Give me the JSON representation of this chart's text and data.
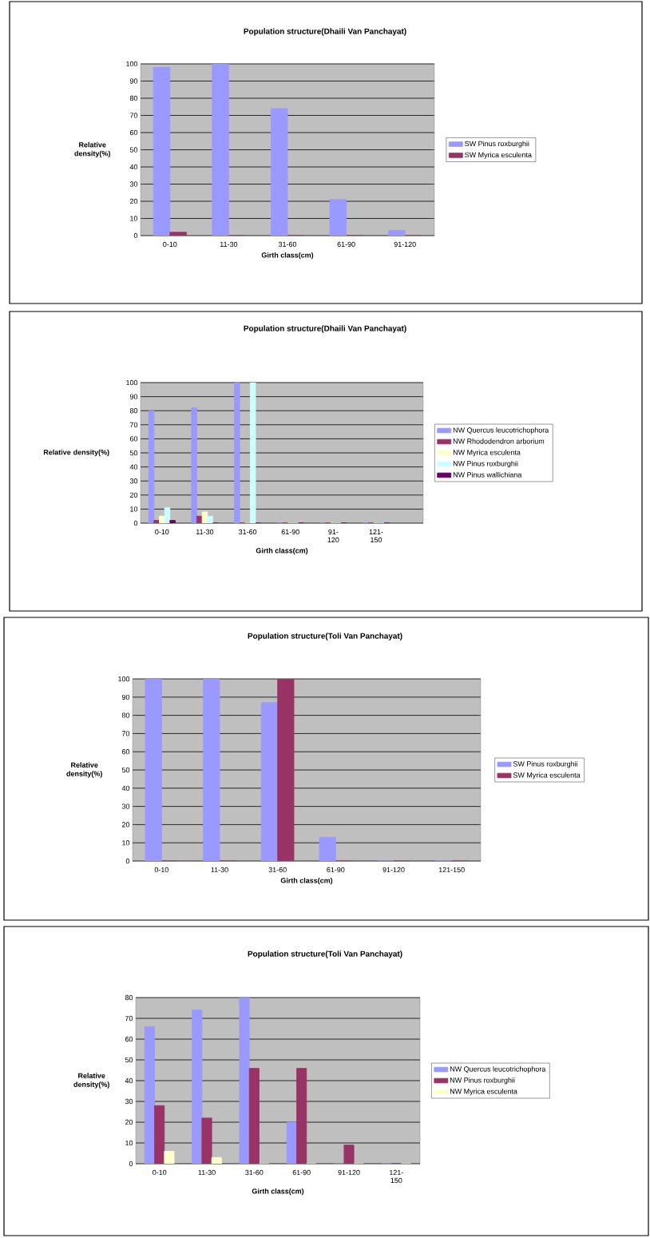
{
  "chart_data": [
    {
      "type": "bar",
      "title": "Population structure(Dhaili Van Panchayat)",
      "xlabel": "Girth class(cm)",
      "ylabel": "Relative density(%)",
      "categories": [
        "0-10",
        "11-30",
        "31-60",
        "61-90",
        "91-120"
      ],
      "series": [
        {
          "name": "SW Pinus roxburghii",
          "color": "#9999ff",
          "values": [
            98,
            100,
            74,
            21,
            3
          ]
        },
        {
          "name": "SW Myrica esculenta",
          "color": "#993366",
          "values": [
            2,
            0,
            0,
            0,
            0
          ]
        }
      ],
      "ylim": [
        0,
        100
      ],
      "yticks": [
        0,
        10,
        20,
        30,
        40,
        50,
        60,
        70,
        80,
        90,
        100
      ],
      "grid": "y",
      "legend": "right"
    },
    {
      "type": "bar",
      "title": "Population structure(Dhaili Van Panchayat)",
      "xlabel": "Girth class(cm)",
      "ylabel": "Relative density(%)",
      "categories": [
        "0-10",
        "11-30",
        "31-60",
        "61-90",
        "91-120",
        "121-150"
      ],
      "series": [
        {
          "name": "NW Quercus leucotrichophora",
          "color": "#9999ff",
          "values": [
            80,
            82,
            100,
            0,
            0,
            0
          ]
        },
        {
          "name": "NW Rhododendron arborium",
          "color": "#993366",
          "values": [
            2,
            5,
            0,
            0,
            0,
            0
          ]
        },
        {
          "name": "NW Myrica esculenta",
          "color": "#ffffcc",
          "values": [
            5,
            8,
            0,
            0,
            0,
            0
          ]
        },
        {
          "name": "NW Pinus roxburghii",
          "color": "#ccffff",
          "values": [
            11,
            5,
            100,
            0,
            0,
            0
          ]
        },
        {
          "name": "NW Pinus wallichiana",
          "color": "#660066",
          "values": [
            2,
            0,
            0,
            0,
            0,
            0
          ]
        }
      ],
      "ylim": [
        0,
        100
      ],
      "yticks": [
        0,
        10,
        20,
        30,
        40,
        50,
        60,
        70,
        80,
        90,
        100
      ],
      "grid": "y",
      "legend": "right"
    },
    {
      "type": "bar",
      "title": "Population structure(Toli Van Panchayat)",
      "xlabel": "Girth class(cm)",
      "ylabel": "Relative density(%)",
      "categories": [
        "0-10",
        "11-30",
        "31-60",
        "61-90",
        "91-120",
        "121-150"
      ],
      "series": [
        {
          "name": "SW Pinus roxburghii",
          "color": "#9999ff",
          "values": [
            100,
            100,
            87,
            13,
            0,
            0
          ]
        },
        {
          "name": "SW Myrica esculenta",
          "color": "#993366",
          "values": [
            0,
            0,
            100,
            0,
            0,
            0
          ]
        }
      ],
      "ylim": [
        0,
        100
      ],
      "yticks": [
        0,
        10,
        20,
        30,
        40,
        50,
        60,
        70,
        80,
        90,
        100
      ],
      "grid": "y",
      "legend": "right"
    },
    {
      "type": "bar",
      "title": "Population structure(Toli Van Panchayat)",
      "xlabel": "Girth class(cm)",
      "ylabel": "Relative density(%)",
      "categories": [
        "0-10",
        "11-30",
        "31-60",
        "61-90",
        "91-120",
        "121-150"
      ],
      "series": [
        {
          "name": "NW Quercus leucotrichophora",
          "color": "#9999ff",
          "values": [
            66,
            74,
            80,
            20,
            0,
            0
          ]
        },
        {
          "name": "NW Pinus roxburghii",
          "color": "#993366",
          "values": [
            28,
            22,
            46,
            46,
            9,
            0
          ]
        },
        {
          "name": "NW Myrica esculenta",
          "color": "#ffffcc",
          "values": [
            6,
            3,
            0,
            0,
            0,
            0
          ]
        }
      ],
      "ylim": [
        0,
        80
      ],
      "yticks": [
        0,
        10,
        20,
        30,
        40,
        50,
        60,
        70,
        80
      ],
      "grid": "y",
      "legend": "right"
    }
  ]
}
